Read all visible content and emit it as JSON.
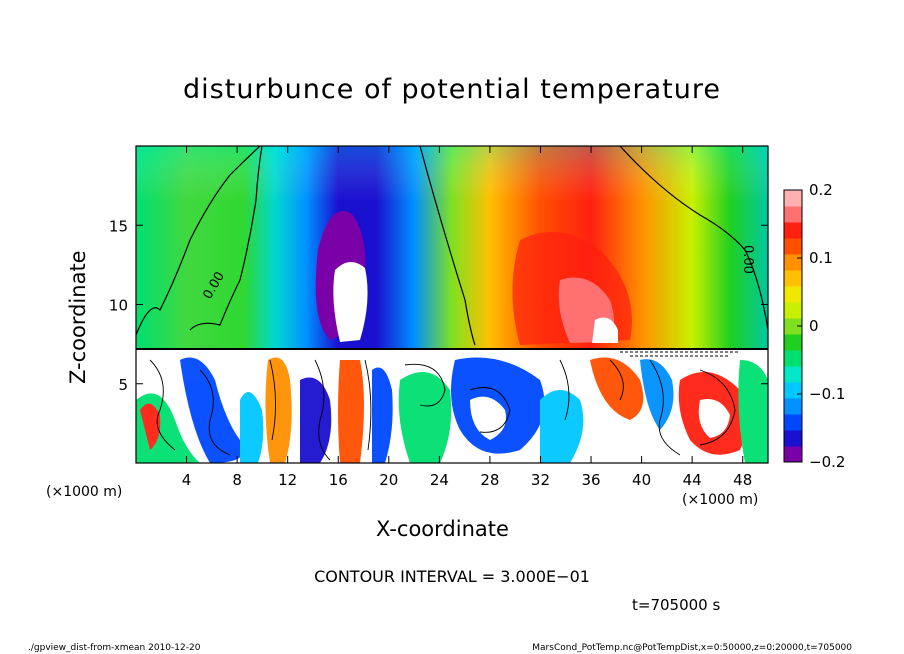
{
  "chart_data": {
    "type": "heatmap",
    "title": "disturbunce of potential temperature",
    "xlabel": "X-coordinate",
    "ylabel": "Z-coordinate",
    "x_unit_label": "(×1000 m)",
    "y_unit_label": "(×1000 m)",
    "x_ticks": [
      4,
      8,
      12,
      16,
      20,
      24,
      28,
      32,
      36,
      40,
      44,
      48
    ],
    "y_ticks": [
      5,
      10,
      15
    ],
    "xlim": [
      0,
      50
    ],
    "ylim": [
      0,
      20
    ],
    "colorbar": {
      "ticks": [
        0.2,
        0.1,
        0,
        -0.1,
        -0.2
      ],
      "tick_labels": [
        "0.2",
        "0.1",
        "0",
        "−0.1",
        "−0.2"
      ],
      "range": [
        -0.2,
        0.2
      ],
      "colors": [
        "#7a00a8",
        "#1a10d0",
        "#0048ff",
        "#0090ff",
        "#00c8ff",
        "#00e8c8",
        "#00e070",
        "#20d020",
        "#80e020",
        "#c8f000",
        "#f0e800",
        "#ffc000",
        "#ff9000",
        "#ff5000",
        "#ff2010",
        "#ff7070",
        "#ffb0b0"
      ]
    },
    "contour_labels": [
      "0.00",
      "0.00"
    ],
    "contour_interval_text": "CONTOUR INTERVAL = 3.000E−01"
  },
  "time_text": "t=705000 s",
  "footer_left": "./gpview_dist-from-xmean  2010-12-20",
  "footer_right": "MarsCond_PotTemp.nc@PotTempDist,x=0:50000,z=0:20000,t=705000"
}
